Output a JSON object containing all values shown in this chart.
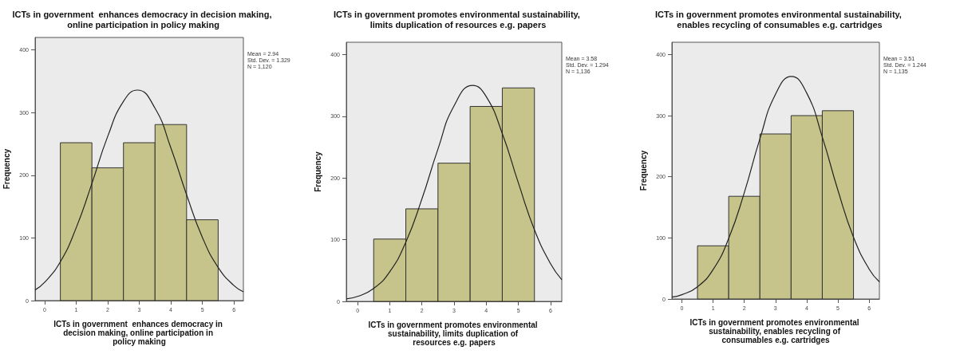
{
  "chart_data": [
    {
      "type": "histogram",
      "title": "ICTs in government  enhances democracy in decision making, online participation in policy making",
      "xlabel": "ICTs in government  enhances democracy in decision making, online participation in policy making",
      "ylabel": "Frequency",
      "xlim": [
        -0.3,
        6.3
      ],
      "xticks": [
        0,
        1,
        2,
        3,
        4,
        5,
        6
      ],
      "ylim": [
        0,
        420
      ],
      "yticks": [
        0,
        100,
        200,
        300,
        400
      ],
      "annotations": [
        "Mean = 2.94",
        "Std. Dev. = 1.329",
        "N = 1,120"
      ],
      "series": [
        {
          "color": "#c6c48a",
          "bins": [
            0.5,
            1.5,
            2.5,
            3.5,
            4.5,
            5.5
          ],
          "values": [
            252,
            212,
            252,
            281,
            129
          ]
        },
        {
          "type": "line",
          "color": "#222222",
          "marker": "none",
          "x": [
            -0.3,
            0,
            0.5,
            1,
            1.5,
            2,
            2.5,
            2.94,
            3.5,
            4,
            4.5,
            5,
            5.5,
            6,
            6.3
          ],
          "values": [
            17,
            29,
            62,
            116,
            187,
            262,
            318,
            336,
            307,
            244,
            169,
            101,
            53,
            24,
            14
          ]
        }
      ]
    },
    {
      "type": "histogram",
      "title": "ICTs in government promotes environmental sustainability, limits duplication of resources e.g. papers",
      "xlabel": "ICTs in government promotes environmental sustainability, limits duplication of resources e.g. papers",
      "ylabel": "Frequency",
      "xlim": [
        -0.35,
        6.35
      ],
      "xticks": [
        0,
        1,
        2,
        3,
        4,
        5,
        6
      ],
      "ylim": [
        0,
        420
      ],
      "yticks": [
        0,
        100,
        200,
        300,
        400
      ],
      "annotations": [
        "Mean = 3.58",
        "Std. Dev. = 1.294",
        "N = 1,136"
      ],
      "series": [
        {
          "color": "#c6c48a",
          "bins": [
            0.5,
            1.5,
            2.5,
            3.5,
            4.5,
            5.5
          ],
          "values": [
            101,
            150,
            224,
            316,
            346
          ]
        },
        {
          "type": "line",
          "color": "#222222",
          "marker": "none",
          "x": [
            -0.35,
            0,
            0.5,
            1,
            1.5,
            2,
            2.5,
            3,
            3.58,
            4,
            4.5,
            5,
            5.5,
            6,
            6.35
          ],
          "values": [
            4,
            8,
            21,
            48,
            96,
            166,
            247,
            317,
            350,
            332,
            272,
            192,
            116,
            61,
            35
          ]
        }
      ]
    },
    {
      "type": "histogram",
      "title": "ICTs in government promotes environmental sustainability, enables recycling of consumables e.g. cartridges",
      "xlabel": "ICTs in government promotes environmental sustainability, enables recycling of consumables e.g. cartridges",
      "ylabel": "Frequency",
      "xlim": [
        -0.32,
        6.33
      ],
      "xticks": [
        0,
        1,
        2,
        3,
        4,
        5,
        6
      ],
      "ylim": [
        0,
        420
      ],
      "yticks": [
        0,
        100,
        200,
        300,
        400
      ],
      "annotations": [
        "Mean = 3.51",
        "Std. Dev. = 1.244",
        "N = 1,135"
      ],
      "series": [
        {
          "color": "#c6c48a",
          "bins": [
            0.5,
            1.5,
            2.5,
            3.5,
            4.5,
            5.5
          ],
          "values": [
            87,
            168,
            270,
            300,
            308
          ]
        },
        {
          "type": "line",
          "color": "#222222",
          "marker": "none",
          "x": [
            -0.32,
            0,
            0.5,
            1,
            1.5,
            2,
            2.5,
            3,
            3.51,
            4,
            4.5,
            5,
            5.5,
            6,
            6.33
          ],
          "values": [
            3,
            7,
            20,
            48,
            99,
            174,
            262,
            335,
            364,
            337,
            265,
            178,
            101,
            49,
            28
          ]
        }
      ]
    }
  ]
}
